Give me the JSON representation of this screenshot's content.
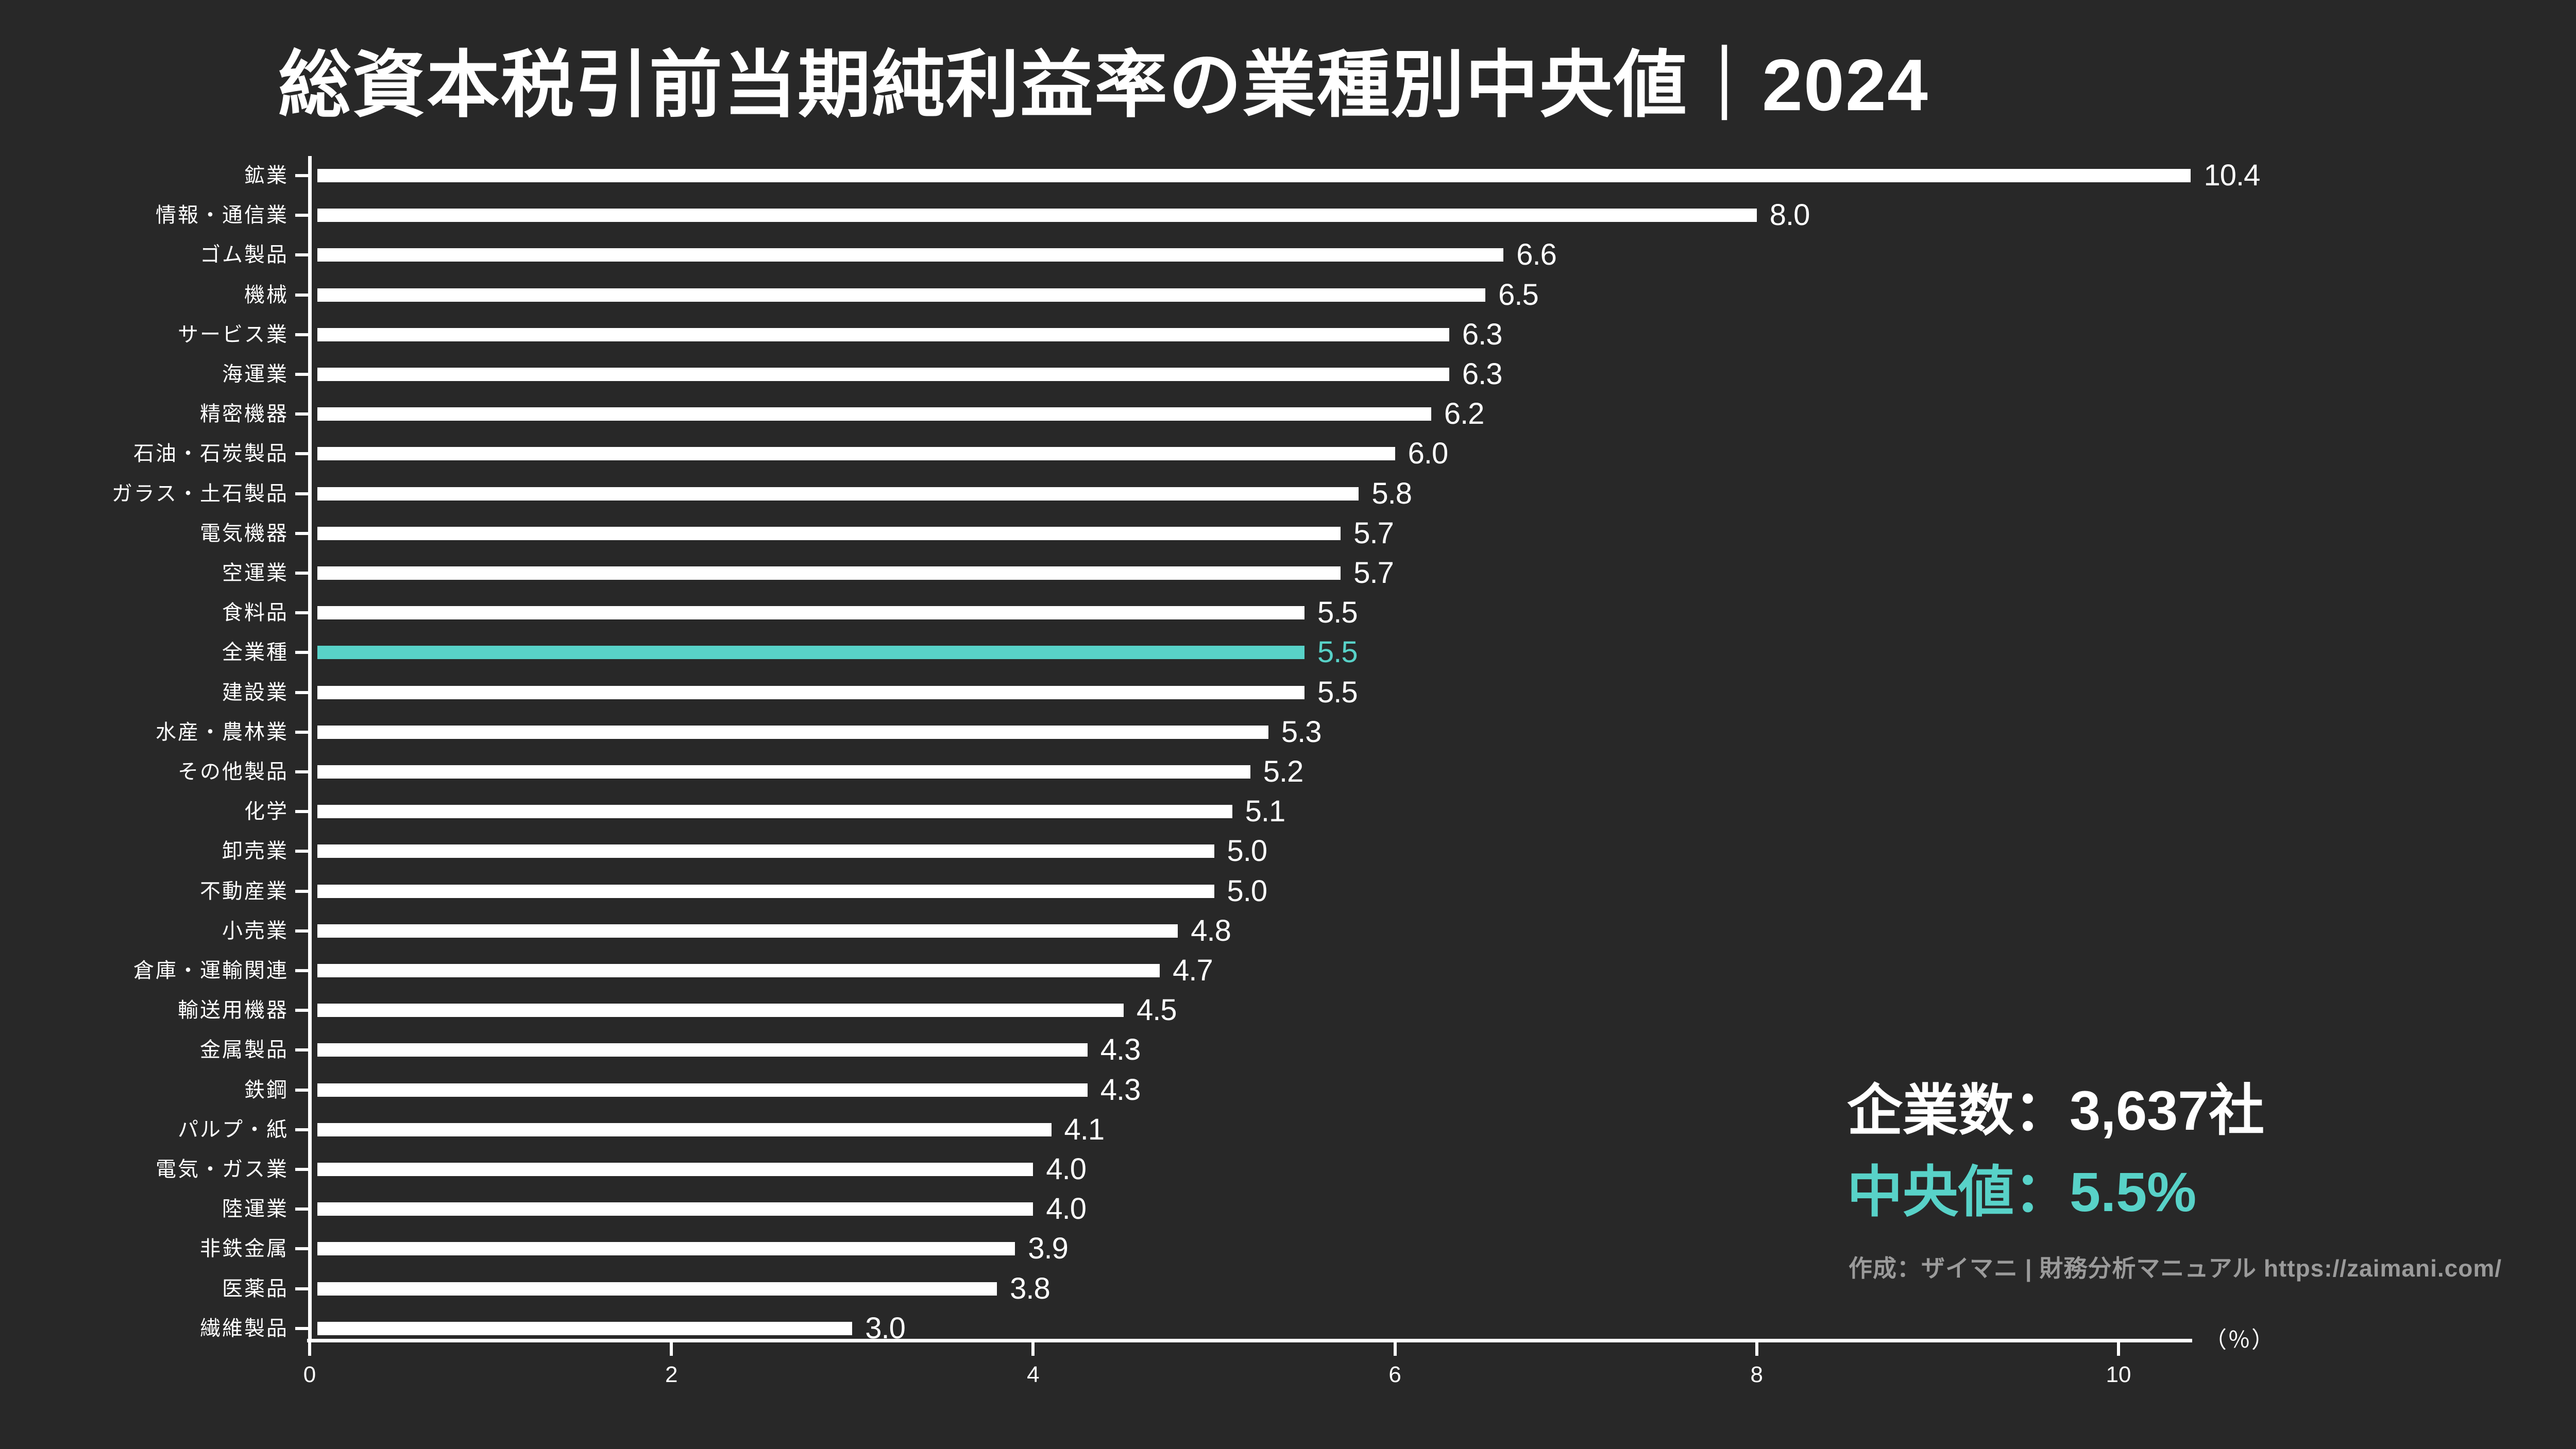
{
  "title": "総資本税引前当期純利益率の業種別中央値｜2024",
  "chart_data": {
    "type": "bar",
    "orientation": "horizontal",
    "title": "総資本税引前当期純利益率の業種別中央値｜2024",
    "unit_label": "（％）",
    "x_ticks": [
      0,
      2,
      4,
      6,
      8,
      10
    ],
    "xlim": [
      0,
      10.4
    ],
    "grid": false,
    "highlight_category": "全業種",
    "rows": [
      {
        "label": "鉱業",
        "value": 10.4,
        "text": "10.4",
        "highlight": false
      },
      {
        "label": "情報・通信業",
        "value": 8.0,
        "text": "8.0",
        "highlight": false
      },
      {
        "label": "ゴム製品",
        "value": 6.6,
        "text": "6.6",
        "highlight": false
      },
      {
        "label": "機械",
        "value": 6.5,
        "text": "6.5",
        "highlight": false
      },
      {
        "label": "サービス業",
        "value": 6.3,
        "text": "6.3",
        "highlight": false
      },
      {
        "label": "海運業",
        "value": 6.3,
        "text": "6.3",
        "highlight": false
      },
      {
        "label": "精密機器",
        "value": 6.2,
        "text": "6.2",
        "highlight": false
      },
      {
        "label": "石油・石炭製品",
        "value": 6.0,
        "text": "6.0",
        "highlight": false
      },
      {
        "label": "ガラス・土石製品",
        "value": 5.8,
        "text": "5.8",
        "highlight": false
      },
      {
        "label": "電気機器",
        "value": 5.7,
        "text": "5.7",
        "highlight": false
      },
      {
        "label": "空運業",
        "value": 5.7,
        "text": "5.7",
        "highlight": false
      },
      {
        "label": "食料品",
        "value": 5.5,
        "text": "5.5",
        "highlight": false
      },
      {
        "label": "全業種",
        "value": 5.5,
        "text": "5.5",
        "highlight": true
      },
      {
        "label": "建設業",
        "value": 5.5,
        "text": "5.5",
        "highlight": false
      },
      {
        "label": "水産・農林業",
        "value": 5.3,
        "text": "5.3",
        "highlight": false
      },
      {
        "label": "その他製品",
        "value": 5.2,
        "text": "5.2",
        "highlight": false
      },
      {
        "label": "化学",
        "value": 5.1,
        "text": "5.1",
        "highlight": false
      },
      {
        "label": "卸売業",
        "value": 5.0,
        "text": "5.0",
        "highlight": false
      },
      {
        "label": "不動産業",
        "value": 5.0,
        "text": "5.0",
        "highlight": false
      },
      {
        "label": "小売業",
        "value": 4.8,
        "text": "4.8",
        "highlight": false
      },
      {
        "label": "倉庫・運輸関連",
        "value": 4.7,
        "text": "4.7",
        "highlight": false
      },
      {
        "label": "輸送用機器",
        "value": 4.5,
        "text": "4.5",
        "highlight": false
      },
      {
        "label": "金属製品",
        "value": 4.3,
        "text": "4.3",
        "highlight": false
      },
      {
        "label": "鉄鋼",
        "value": 4.3,
        "text": "4.3",
        "highlight": false
      },
      {
        "label": "パルプ・紙",
        "value": 4.1,
        "text": "4.1",
        "highlight": false
      },
      {
        "label": "電気・ガス業",
        "value": 4.0,
        "text": "4.0",
        "highlight": false
      },
      {
        "label": "陸運業",
        "value": 4.0,
        "text": "4.0",
        "highlight": false
      },
      {
        "label": "非鉄金属",
        "value": 3.9,
        "text": "3.9",
        "highlight": false
      },
      {
        "label": "医薬品",
        "value": 3.8,
        "text": "3.8",
        "highlight": false
      },
      {
        "label": "繊維製品",
        "value": 3.0,
        "text": "3.0",
        "highlight": false
      }
    ]
  },
  "stats": {
    "companies_label": "企業数：3,637社",
    "median_label": "中央値：5.5%"
  },
  "credit": "作成：ザイマニ | 財務分析マニュアル https://zaimani.com/",
  "colors": {
    "background": "#282828",
    "bar": "#ffffff",
    "highlight": "#58D2C8",
    "axis": "#ffffff",
    "credit_text": "#9b9b9b"
  }
}
